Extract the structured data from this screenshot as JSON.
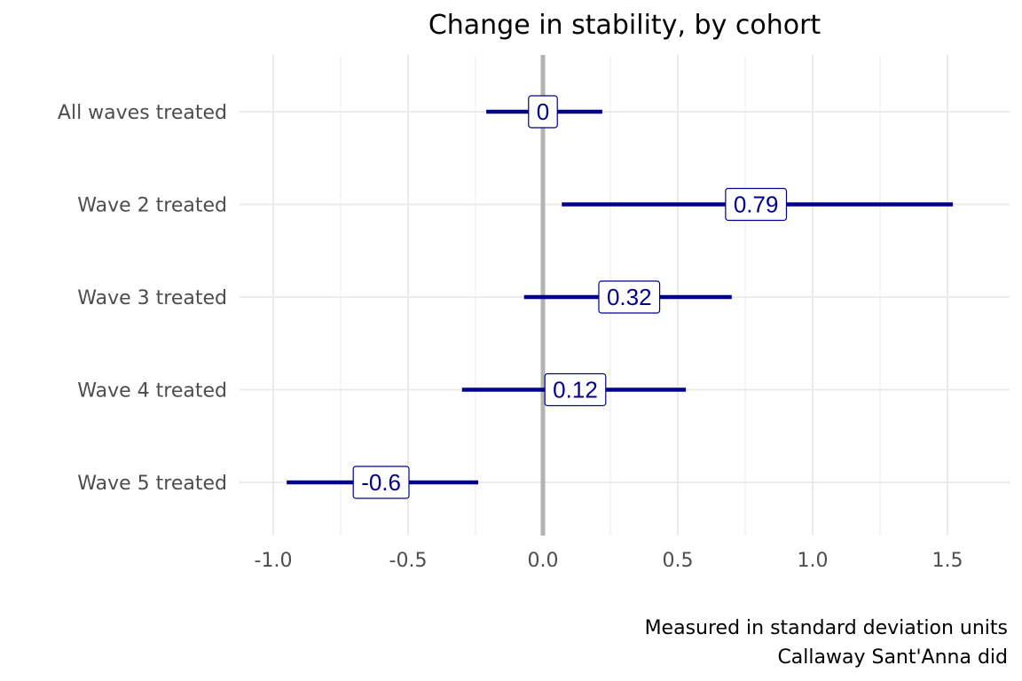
{
  "chart_data": {
    "type": "interval",
    "title": "Change in stability, by cohort",
    "caption_lines": [
      "Measured in standard deviation units",
      "Callaway Sant'Anna did"
    ],
    "xlim": [
      -1.1,
      1.75
    ],
    "xticks": [
      -1.0,
      -0.5,
      0.0,
      0.5,
      1.0,
      1.5
    ],
    "xtick_labels": [
      "-1.0",
      "-0.5",
      "0.0",
      "0.5",
      "1.0",
      "1.5"
    ],
    "reference_line": 0,
    "grid": true,
    "series_color": "#00008B",
    "reference_color": "#b3b3b3",
    "grid_color": "#ebebeb",
    "categories": [
      "All waves treated",
      "Wave 2 treated",
      "Wave 3 treated",
      "Wave 4 treated",
      "Wave 5 treated"
    ],
    "estimates": [
      0,
      0.79,
      0.32,
      0.12,
      -0.6
    ],
    "labels": [
      "0",
      "0.79",
      "0.32",
      "0.12",
      "-0.6"
    ],
    "lower": [
      -0.21,
      0.07,
      -0.07,
      -0.3,
      -0.95
    ],
    "upper": [
      0.22,
      1.52,
      0.7,
      0.53,
      -0.24
    ]
  }
}
